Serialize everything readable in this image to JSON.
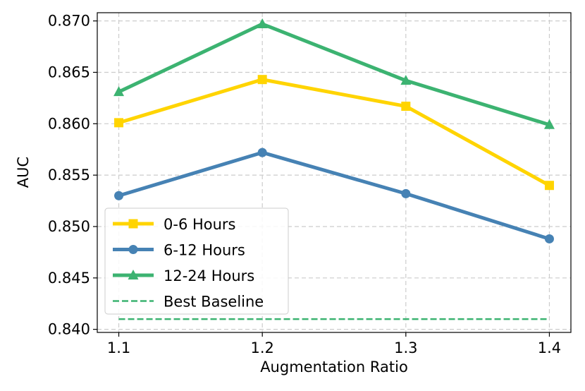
{
  "chart_data": {
    "type": "line",
    "title": "",
    "xlabel": "Augmentation Ratio",
    "ylabel": "AUC",
    "x": [
      1.1,
      1.2,
      1.3,
      1.4
    ],
    "x_tick_labels": [
      "1.1",
      "1.2",
      "1.3",
      "1.4"
    ],
    "xlim": [
      1.085,
      1.415
    ],
    "ylim": [
      0.8397,
      0.8708
    ],
    "y_ticks": [
      0.84,
      0.845,
      0.85,
      0.855,
      0.86,
      0.865,
      0.87
    ],
    "y_tick_labels": [
      "0.840",
      "0.845",
      "0.850",
      "0.855",
      "0.860",
      "0.865",
      "0.870"
    ],
    "grid": true,
    "legend_position": "bottom-left",
    "series": [
      {
        "name": "0-6 Hours",
        "values": [
          0.8601,
          0.8643,
          0.8617,
          0.854
        ],
        "color": "#ffd400",
        "marker": "square",
        "linestyle": "solid"
      },
      {
        "name": "6-12 Hours",
        "values": [
          0.853,
          0.8572,
          0.8532,
          0.8488
        ],
        "color": "#4682b4",
        "marker": "circle",
        "linestyle": "solid"
      },
      {
        "name": "12-24 Hours",
        "values": [
          0.8631,
          0.8697,
          0.8642,
          0.8599
        ],
        "color": "#3cb371",
        "marker": "triangle",
        "linestyle": "solid"
      },
      {
        "name": "Best Baseline",
        "values": [
          0.841,
          0.841,
          0.841,
          0.841
        ],
        "color": "#3cb371",
        "marker": "none",
        "linestyle": "dashed"
      }
    ]
  }
}
